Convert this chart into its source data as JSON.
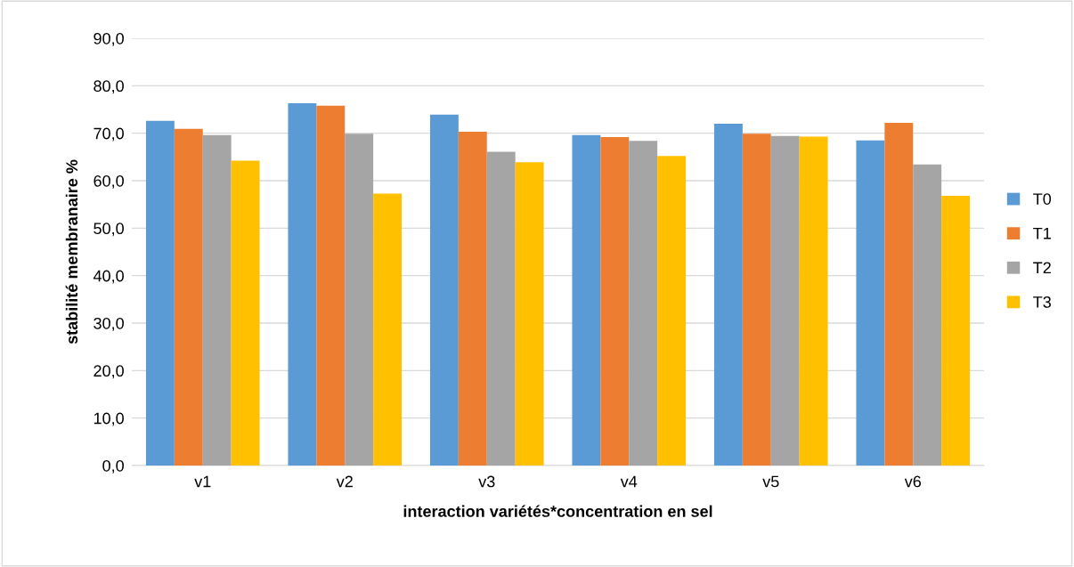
{
  "chart_data": {
    "type": "bar",
    "xlabel": "interaction variétés*concentration en sel",
    "ylabel": "stabilité membranaire %",
    "categories": [
      "v1",
      "v2",
      "v3",
      "v4",
      "v5",
      "v6"
    ],
    "series": [
      {
        "name": "T0",
        "color": "#5b9bd5",
        "values": [
          72.6,
          76.3,
          73.9,
          69.6,
          72.0,
          68.5
        ]
      },
      {
        "name": "T1",
        "color": "#ed7d31",
        "values": [
          70.9,
          75.8,
          70.3,
          69.2,
          69.9,
          72.2
        ]
      },
      {
        "name": "T2",
        "color": "#a5a5a5",
        "values": [
          69.6,
          69.9,
          66.1,
          68.4,
          69.4,
          63.4
        ]
      },
      {
        "name": "T3",
        "color": "#ffc000",
        "values": [
          64.2,
          57.3,
          63.9,
          65.2,
          69.3,
          56.8
        ]
      }
    ],
    "ylim": [
      0,
      90
    ],
    "yticks": [
      {
        "value": 0,
        "label": "0,0"
      },
      {
        "value": 10,
        "label": "10,0"
      },
      {
        "value": 20,
        "label": "20,0"
      },
      {
        "value": 30,
        "label": "30,0"
      },
      {
        "value": 40,
        "label": "40,0"
      },
      {
        "value": 50,
        "label": "50,0"
      },
      {
        "value": 60,
        "label": "60,0"
      },
      {
        "value": 70,
        "label": "70,0"
      },
      {
        "value": 80,
        "label": "80,0"
      },
      {
        "value": 90,
        "label": "90,0"
      }
    ],
    "grid": "y",
    "legend": "right"
  }
}
